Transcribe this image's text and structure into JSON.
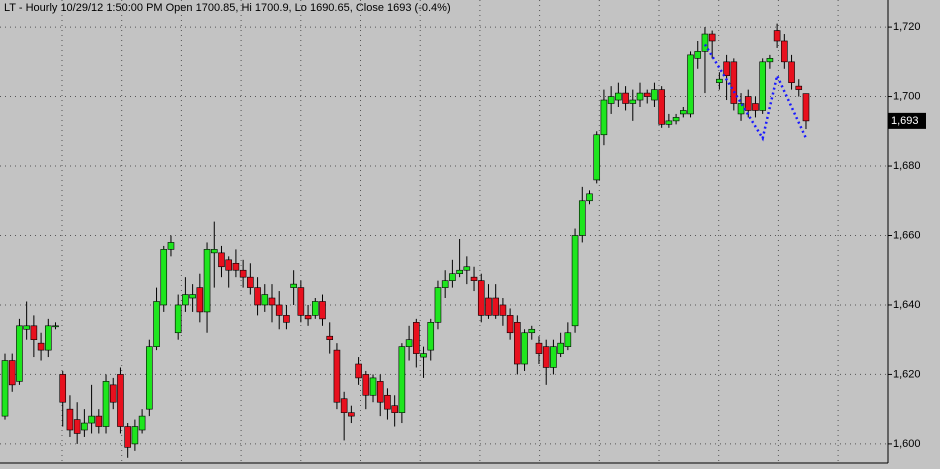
{
  "chart_data": {
    "type": "candlestick",
    "title": "LT - Hourly 10/29/12 1:50:00 PM Open 1700.85, Hi 1700.9, Lo 1690.65, Close 1693 (-0.4%)",
    "up_color": "#1ee61e",
    "down_color": "#e8101e",
    "open": [
      1608,
      1624,
      1618,
      1633,
      1634,
      1629,
      1627,
      1634,
      1620,
      1610,
      1607,
      1604,
      1606,
      1608,
      1605,
      1617,
      1620,
      1605,
      1600,
      1604,
      1610,
      1628,
      1640,
      1656,
      1632,
      1640,
      1642,
      1645,
      1638,
      1655,
      1655,
      1653,
      1652,
      1650,
      1648,
      1645,
      1640,
      1642,
      1640,
      1637,
      1645,
      1645,
      1637,
      1637,
      1641,
      1631,
      1627,
      1613,
      1609,
      1623,
      1620,
      1614,
      1618,
      1614,
      1611,
      1609,
      1628,
      1635,
      1625,
      1627,
      1635,
      1645,
      1647,
      1649,
      1650,
      1648,
      1647,
      1642,
      1642,
      1640,
      1637,
      1635,
      1623,
      1632,
      1629,
      1628,
      1622,
      1626,
      1628,
      1634,
      1660,
      1670,
      1676,
      1689,
      1698,
      1699,
      1701,
      1698,
      1699,
      1701,
      1699,
      1702,
      1692,
      1693,
      1695,
      1695,
      1711,
      1713,
      1718,
      1704,
      1710,
      1710,
      1695,
      1700,
      1698,
      1696,
      1710,
      1719,
      1716,
      1710,
      1703,
      1700.85
    ],
    "high": [
      1626,
      1626,
      1636,
      1641,
      1637,
      1632,
      1636,
      1635,
      1621,
      1614,
      1612,
      1610,
      1617,
      1610,
      1620,
      1619,
      1622,
      1606,
      1607,
      1610,
      1630,
      1645,
      1657,
      1660,
      1643,
      1648,
      1646,
      1649,
      1658,
      1664,
      1657,
      1654,
      1656,
      1653,
      1652,
      1648,
      1646,
      1646,
      1644,
      1640,
      1650,
      1647,
      1640,
      1642,
      1643,
      1635,
      1629,
      1615,
      1611,
      1625,
      1621,
      1620,
      1620,
      1616,
      1614,
      1629,
      1634,
      1636,
      1628,
      1636,
      1647,
      1650,
      1653,
      1659,
      1654,
      1651,
      1649,
      1646,
      1646,
      1642,
      1639,
      1637,
      1633,
      1634,
      1631,
      1630,
      1630,
      1632,
      1635,
      1662,
      1674,
      1673,
      1690,
      1702,
      1703,
      1704,
      1703,
      1702,
      1704,
      1702,
      1704,
      1703,
      1695,
      1695,
      1697,
      1713,
      1716,
      1720,
      1719,
      1707,
      1712,
      1711,
      1701,
      1702,
      1700,
      1711,
      1712,
      1721,
      1718,
      1712,
      1705,
      1700.9
    ],
    "low": [
      1607,
      1615,
      1617,
      1630,
      1625,
      1624,
      1625,
      1633,
      1605,
      1602,
      1600,
      1602,
      1603,
      1603,
      1603,
      1610,
      1603,
      1596,
      1598,
      1603,
      1608,
      1627,
      1638,
      1654,
      1630,
      1638,
      1638,
      1635,
      1632,
      1645,
      1648,
      1645,
      1648,
      1645,
      1643,
      1637,
      1638,
      1635,
      1633,
      1633,
      1640,
      1635,
      1634,
      1636,
      1634,
      1626,
      1610,
      1601,
      1606,
      1617,
      1610,
      1612,
      1608,
      1607,
      1605,
      1606,
      1624,
      1622,
      1619,
      1624,
      1633,
      1642,
      1645,
      1648,
      1646,
      1644,
      1635,
      1636,
      1636,
      1634,
      1630,
      1620,
      1621,
      1630,
      1623,
      1617,
      1620,
      1625,
      1627,
      1632,
      1658,
      1669,
      1675,
      1686,
      1695,
      1697,
      1696,
      1693,
      1697,
      1698,
      1697,
      1691,
      1691,
      1692,
      1694,
      1694,
      1708,
      1701,
      1711,
      1702,
      1699,
      1696,
      1693,
      1694,
      1694,
      1695,
      1708,
      1714,
      1708,
      1702,
      1700,
      1690.65
    ],
    "close": [
      1624,
      1617,
      1634,
      1634,
      1630,
      1627,
      1634,
      1634,
      1612,
      1604,
      1603,
      1606,
      1608,
      1605,
      1618,
      1612,
      1605,
      1599,
      1605,
      1608,
      1628,
      1641,
      1656,
      1658,
      1640,
      1643,
      1643,
      1638,
      1656,
      1656,
      1651,
      1650,
      1650,
      1648,
      1645,
      1640,
      1643,
      1640,
      1637,
      1635,
      1646,
      1637,
      1636,
      1641,
      1636,
      1630,
      1612,
      1609,
      1608,
      1619,
      1614,
      1619,
      1612,
      1610,
      1609,
      1628,
      1630,
      1626,
      1626,
      1635,
      1645,
      1647,
      1649,
      1650,
      1651,
      1647,
      1637,
      1637,
      1637,
      1637,
      1632,
      1623,
      1632,
      1633,
      1626,
      1622,
      1628,
      1629,
      1632,
      1660,
      1670,
      1672,
      1689,
      1699,
      1700,
      1701,
      1698,
      1699,
      1701,
      1700,
      1702,
      1692,
      1693,
      1694,
      1696,
      1712,
      1713,
      1718,
      1716,
      1705,
      1706,
      1698,
      1698,
      1696,
      1696,
      1710,
      1711,
      1716,
      1710,
      1704,
      1702,
      1693
    ],
    "pattern": {
      "color": "#1a1aff",
      "x": [
        97,
        105,
        107,
        111
      ],
      "values": [
        1715,
        1688,
        1706,
        1688
      ]
    },
    "last_price": {
      "value": 1693,
      "label": "1,693"
    },
    "ylim": [
      1594.5,
      1727.8
    ],
    "yticks": [
      {
        "value": 1600,
        "label": "1,600"
      },
      {
        "value": 1620,
        "label": "1,620"
      },
      {
        "value": 1640,
        "label": "1,640"
      },
      {
        "value": 1660,
        "label": "1,660"
      },
      {
        "value": 1680,
        "label": "1,680"
      },
      {
        "value": 1700,
        "label": "1,700"
      },
      {
        "value": 1720,
        "label": "1,720"
      }
    ],
    "grid": true
  }
}
